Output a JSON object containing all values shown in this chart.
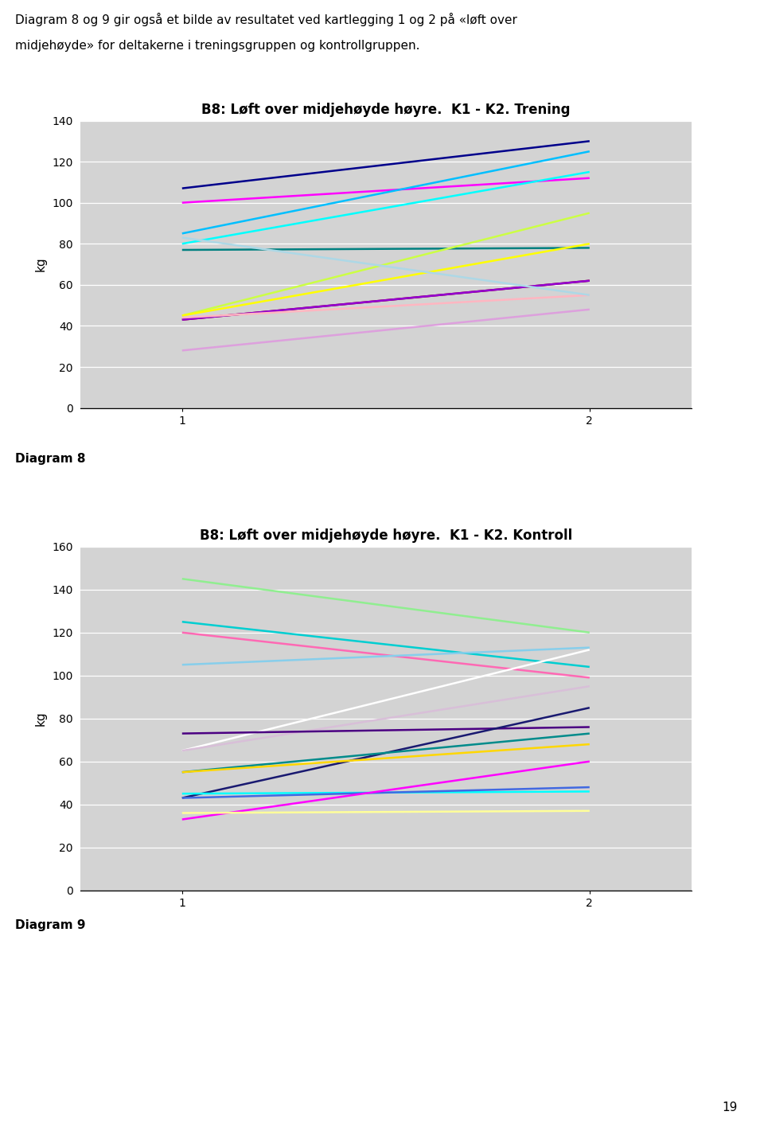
{
  "intro_text1": "Diagram 8 og 9 gir også et bilde av resultatet ved kartlegging 1 og 2 på «løft over",
  "intro_text2": "midjehøyde» for deltakerne i treningsgruppen og kontrollgruppen.",
  "title1": "B8: Løft over midjehøyde høyre.  K1 - K2. Trening",
  "title2": "B8: Løft over midjehøyde høyre.  K1 - K2. Kontroll",
  "ylabel": "kg",
  "label1": "Diagram 8",
  "label2": "Diagram 9",
  "page_number": "19",
  "chart1": {
    "ylim": [
      0,
      140
    ],
    "yticks": [
      0,
      20,
      40,
      60,
      80,
      100,
      120,
      140
    ],
    "lines": [
      {
        "color": "#00008B",
        "k1": 107,
        "k2": 130
      },
      {
        "color": "#FF00FF",
        "k1": 100,
        "k2": 112
      },
      {
        "color": "#00BFFF",
        "k1": 85,
        "k2": 125
      },
      {
        "color": "#00FFFF",
        "k1": 80,
        "k2": 115
      },
      {
        "color": "#008080",
        "k1": 77,
        "k2": 78
      },
      {
        "color": "#CCFF44",
        "k1": 45,
        "k2": 95
      },
      {
        "color": "#FFFF00",
        "k1": 45,
        "k2": 80
      },
      {
        "color": "#8B0000",
        "k1": 43,
        "k2": 62
      },
      {
        "color": "#9400D3",
        "k1": 43,
        "k2": 62
      },
      {
        "color": "#FFB6C1",
        "k1": 44,
        "k2": 55
      },
      {
        "color": "#ADD8E6",
        "k1": 83,
        "k2": 55
      },
      {
        "color": "#DDA0DD",
        "k1": 28,
        "k2": 48
      }
    ]
  },
  "chart2": {
    "ylim": [
      0,
      160
    ],
    "yticks": [
      0,
      20,
      40,
      60,
      80,
      100,
      120,
      140,
      160
    ],
    "lines": [
      {
        "color": "#90EE90",
        "k1": 145,
        "k2": 120
      },
      {
        "color": "#00CED1",
        "k1": 125,
        "k2": 104
      },
      {
        "color": "#FF69B4",
        "k1": 120,
        "k2": 99
      },
      {
        "color": "#87CEEB",
        "k1": 105,
        "k2": 113
      },
      {
        "color": "#FFFFFF",
        "k1": 65,
        "k2": 112
      },
      {
        "color": "#D8BFD8",
        "k1": 65,
        "k2": 95
      },
      {
        "color": "#4B0082",
        "k1": 73,
        "k2": 76
      },
      {
        "color": "#191970",
        "k1": 43,
        "k2": 85
      },
      {
        "color": "#008B8B",
        "k1": 55,
        "k2": 73
      },
      {
        "color": "#FFD700",
        "k1": 55,
        "k2": 68
      },
      {
        "color": "#00FFFF",
        "k1": 45,
        "k2": 46
      },
      {
        "color": "#4169E1",
        "k1": 43,
        "k2": 48
      },
      {
        "color": "#FF00FF",
        "k1": 33,
        "k2": 60
      },
      {
        "color": "#FFFF99",
        "k1": 36,
        "k2": 37
      }
    ]
  },
  "plot_bg": "#D3D3D3",
  "font_size_title": 12,
  "font_size_axis": 11,
  "font_size_label": 11,
  "font_size_intro": 11,
  "font_size_page": 11,
  "line_width": 1.8
}
